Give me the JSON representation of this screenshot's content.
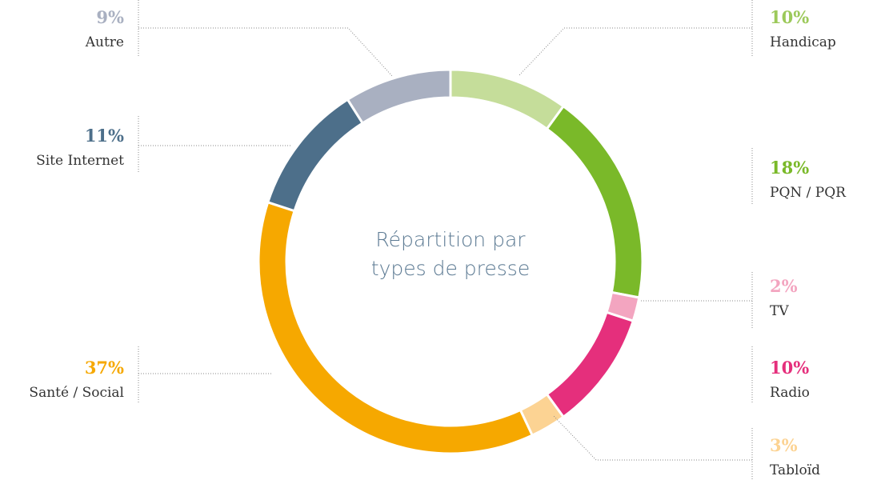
{
  "chart_data": {
    "type": "donut",
    "title": "Répartition par types de presse",
    "categories": [
      "Handicap",
      "PQN / PQR",
      "TV",
      "Radio",
      "Tabloïd",
      "Santé / Social",
      "Site Internet",
      "Autre"
    ],
    "values": [
      10,
      18,
      2,
      10,
      3,
      37,
      11,
      9
    ],
    "value_labels": [
      "10%",
      "18%",
      "2%",
      "10%",
      "3%",
      "37%",
      "11%",
      "9%"
    ],
    "colors": [
      "#c5dd9a",
      "#7ab929",
      "#f3a5c0",
      "#e52f7c",
      "#fcd393",
      "#f6a800",
      "#4d6f8a",
      "#a9b0c1"
    ]
  }
}
